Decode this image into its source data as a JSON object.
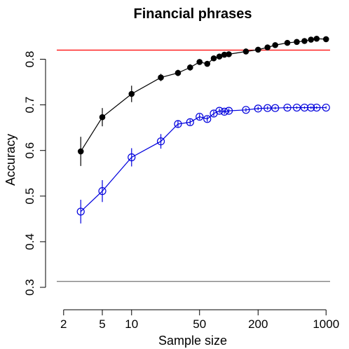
{
  "chart_data": {
    "type": "line",
    "title": "Financial phrases",
    "xlabel": "Sample size",
    "ylabel": "Accuracy",
    "x_scale": "log",
    "xlim": [
      1.7,
      1100
    ],
    "ylim": [
      0.3,
      0.85
    ],
    "x_ticks": [
      2,
      5,
      10,
      50,
      200,
      1000
    ],
    "x_tick_labels": [
      "2",
      "5",
      "10",
      "50",
      "200",
      "1000"
    ],
    "y_ticks": [
      0.3,
      0.4,
      0.5,
      0.6,
      0.7,
      0.8
    ],
    "y_tick_labels": [
      "0.3",
      "0.4",
      "0.5",
      "0.6",
      "0.7",
      "0.8"
    ],
    "grid": false,
    "legend": "none",
    "reference_lines": [
      {
        "y": 0.82,
        "color": "#ff0000"
      },
      {
        "y": 0.313,
        "color": "#808080"
      }
    ],
    "series": [
      {
        "color": "#000000",
        "marker": "filled-circle",
        "x": [
          3,
          5,
          10,
          20,
          30,
          40,
          50,
          60,
          70,
          80,
          90,
          100,
          150,
          200,
          250,
          300,
          400,
          500,
          600,
          700,
          800,
          1000
        ],
        "y": [
          0.598,
          0.673,
          0.724,
          0.76,
          0.77,
          0.782,
          0.794,
          0.79,
          0.802,
          0.806,
          0.81,
          0.811,
          0.817,
          0.821,
          0.826,
          0.831,
          0.836,
          0.838,
          0.84,
          0.843,
          0.845,
          0.844
        ],
        "err": [
          0.032,
          0.02,
          0.018,
          0.008,
          0.007,
          0.007,
          0.006,
          0.006,
          0.006,
          0.005,
          0.005,
          0.005,
          0.004,
          0.004,
          0.004,
          0.003,
          0.003,
          0.003,
          0.003,
          0.003,
          0.003,
          0.003
        ]
      },
      {
        "color": "#0000dd",
        "marker": "open-circle",
        "x": [
          3,
          5,
          10,
          20,
          30,
          40,
          50,
          60,
          70,
          80,
          90,
          100,
          150,
          200,
          250,
          300,
          400,
          500,
          600,
          700,
          800,
          1000
        ],
        "y": [
          0.466,
          0.511,
          0.585,
          0.62,
          0.658,
          0.662,
          0.674,
          0.669,
          0.681,
          0.687,
          0.685,
          0.687,
          0.689,
          0.692,
          0.693,
          0.693,
          0.694,
          0.694,
          0.694,
          0.694,
          0.694,
          0.694
        ],
        "err": [
          0.026,
          0.024,
          0.02,
          0.016,
          0.008,
          0.006,
          0.006,
          0.006,
          0.006,
          0.005,
          0.005,
          0.005,
          0.004,
          0.004,
          0.004,
          0.003,
          0.003,
          0.003,
          0.003,
          0.003,
          0.003,
          0.003
        ]
      }
    ]
  }
}
